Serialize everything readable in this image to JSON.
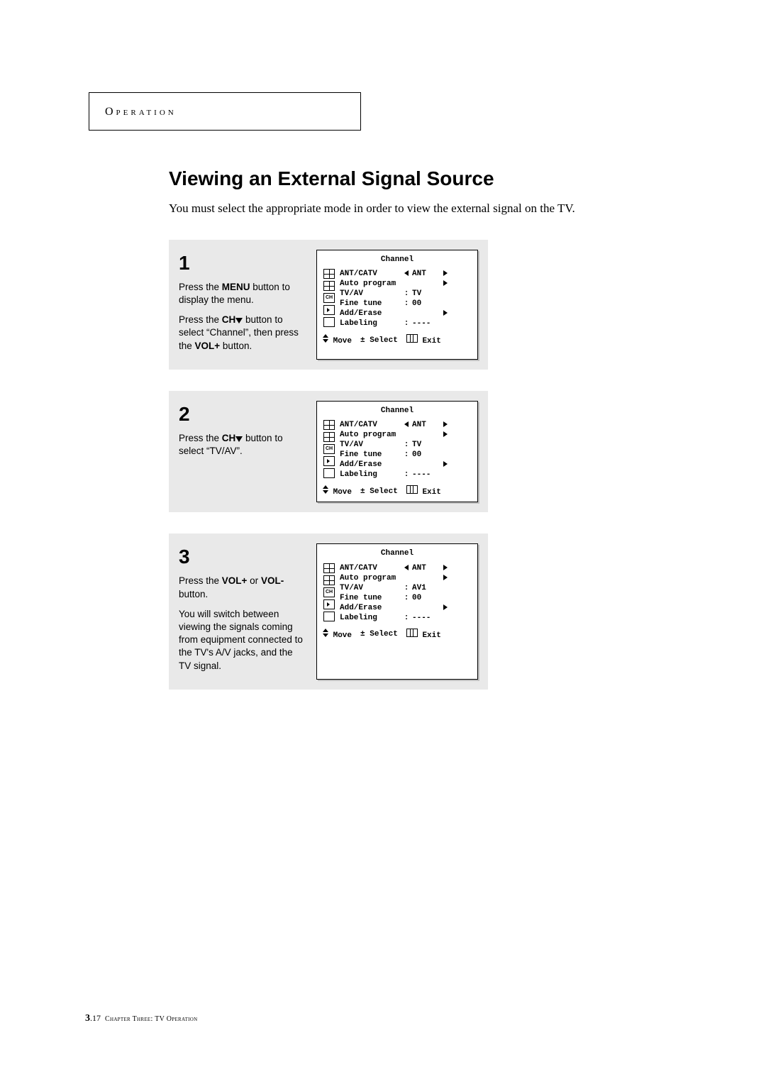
{
  "header": {
    "label": "Operation"
  },
  "title": "Viewing an External Signal Source",
  "intro": "You must select the appropriate mode in order to view the external signal on the TV.",
  "steps": [
    {
      "num": "1",
      "lines": [
        [
          {
            "t": "Press the "
          },
          {
            "t": "MENU",
            "b": true
          },
          {
            "t": " button to display the menu."
          }
        ],
        [
          {
            "t": "Press the "
          },
          {
            "t": "CH",
            "b": true
          },
          {
            "t": " ",
            "tri": "down"
          },
          {
            "t": " button to select “Channel”, then press the "
          },
          {
            "t": "VOL+",
            "b": true
          },
          {
            "t": " button."
          }
        ]
      ],
      "osd": {
        "title": "Channel",
        "rows": [
          {
            "k": "ANT/CATV",
            "left": true,
            "v": "ANT",
            "right": true
          },
          {
            "k": "Auto program",
            "left": false,
            "v": "",
            "right": true
          },
          {
            "k": "TV/AV",
            "colon": true,
            "v": "TV"
          },
          {
            "k": "Fine tune",
            "colon": true,
            "v": "00"
          },
          {
            "k": "Add/Erase",
            "left": false,
            "v": "",
            "right": true
          },
          {
            "k": "Labeling",
            "colon": true,
            "v": "----"
          }
        ],
        "foot": {
          "move": "Move",
          "select": "Select",
          "exit": "Exit"
        }
      }
    },
    {
      "num": "2",
      "lines": [
        [
          {
            "t": "Press the "
          },
          {
            "t": "CH",
            "b": true
          },
          {
            "t": " ",
            "tri": "down"
          },
          {
            "t": " button to select “TV/AV”."
          }
        ]
      ],
      "osd": {
        "title": "Channel",
        "rows": [
          {
            "k": "ANT/CATV",
            "left": true,
            "v": "ANT",
            "right": true
          },
          {
            "k": "Auto program",
            "left": false,
            "v": "",
            "right": true
          },
          {
            "k": "TV/AV",
            "colon": true,
            "v": "TV"
          },
          {
            "k": "Fine tune",
            "colon": true,
            "v": "00"
          },
          {
            "k": "Add/Erase",
            "left": false,
            "v": "",
            "right": true
          },
          {
            "k": "Labeling",
            "colon": true,
            "v": "----"
          }
        ],
        "foot": {
          "move": "Move",
          "select": "Select",
          "exit": "Exit"
        }
      }
    },
    {
      "num": "3",
      "lines": [
        [
          {
            "t": "Press the "
          },
          {
            "t": "VOL+",
            "b": true
          },
          {
            "t": " or "
          },
          {
            "t": "VOL-",
            "b": true
          },
          {
            "t": " button."
          }
        ],
        [
          {
            "t": "You will switch between viewing the signals coming from equipment connected to the TV's A/V jacks, and the TV signal."
          }
        ]
      ],
      "osd": {
        "title": "Channel",
        "rows": [
          {
            "k": "ANT/CATV",
            "left": true,
            "v": "ANT",
            "right": true
          },
          {
            "k": "Auto program",
            "left": false,
            "v": "",
            "right": true
          },
          {
            "k": "TV/AV",
            "colon": true,
            "v": "AV1"
          },
          {
            "k": "Fine tune",
            "colon": true,
            "v": "00"
          },
          {
            "k": "Add/Erase",
            "left": false,
            "v": "",
            "right": true
          },
          {
            "k": "Labeling",
            "colon": true,
            "v": "----"
          }
        ],
        "foot": {
          "move": "Move",
          "select": "Select",
          "exit": "Exit"
        }
      }
    }
  ],
  "footer": {
    "pagenum": "3",
    "pagesub": ".17",
    "chapter": "Chapter Three: TV Operation"
  }
}
